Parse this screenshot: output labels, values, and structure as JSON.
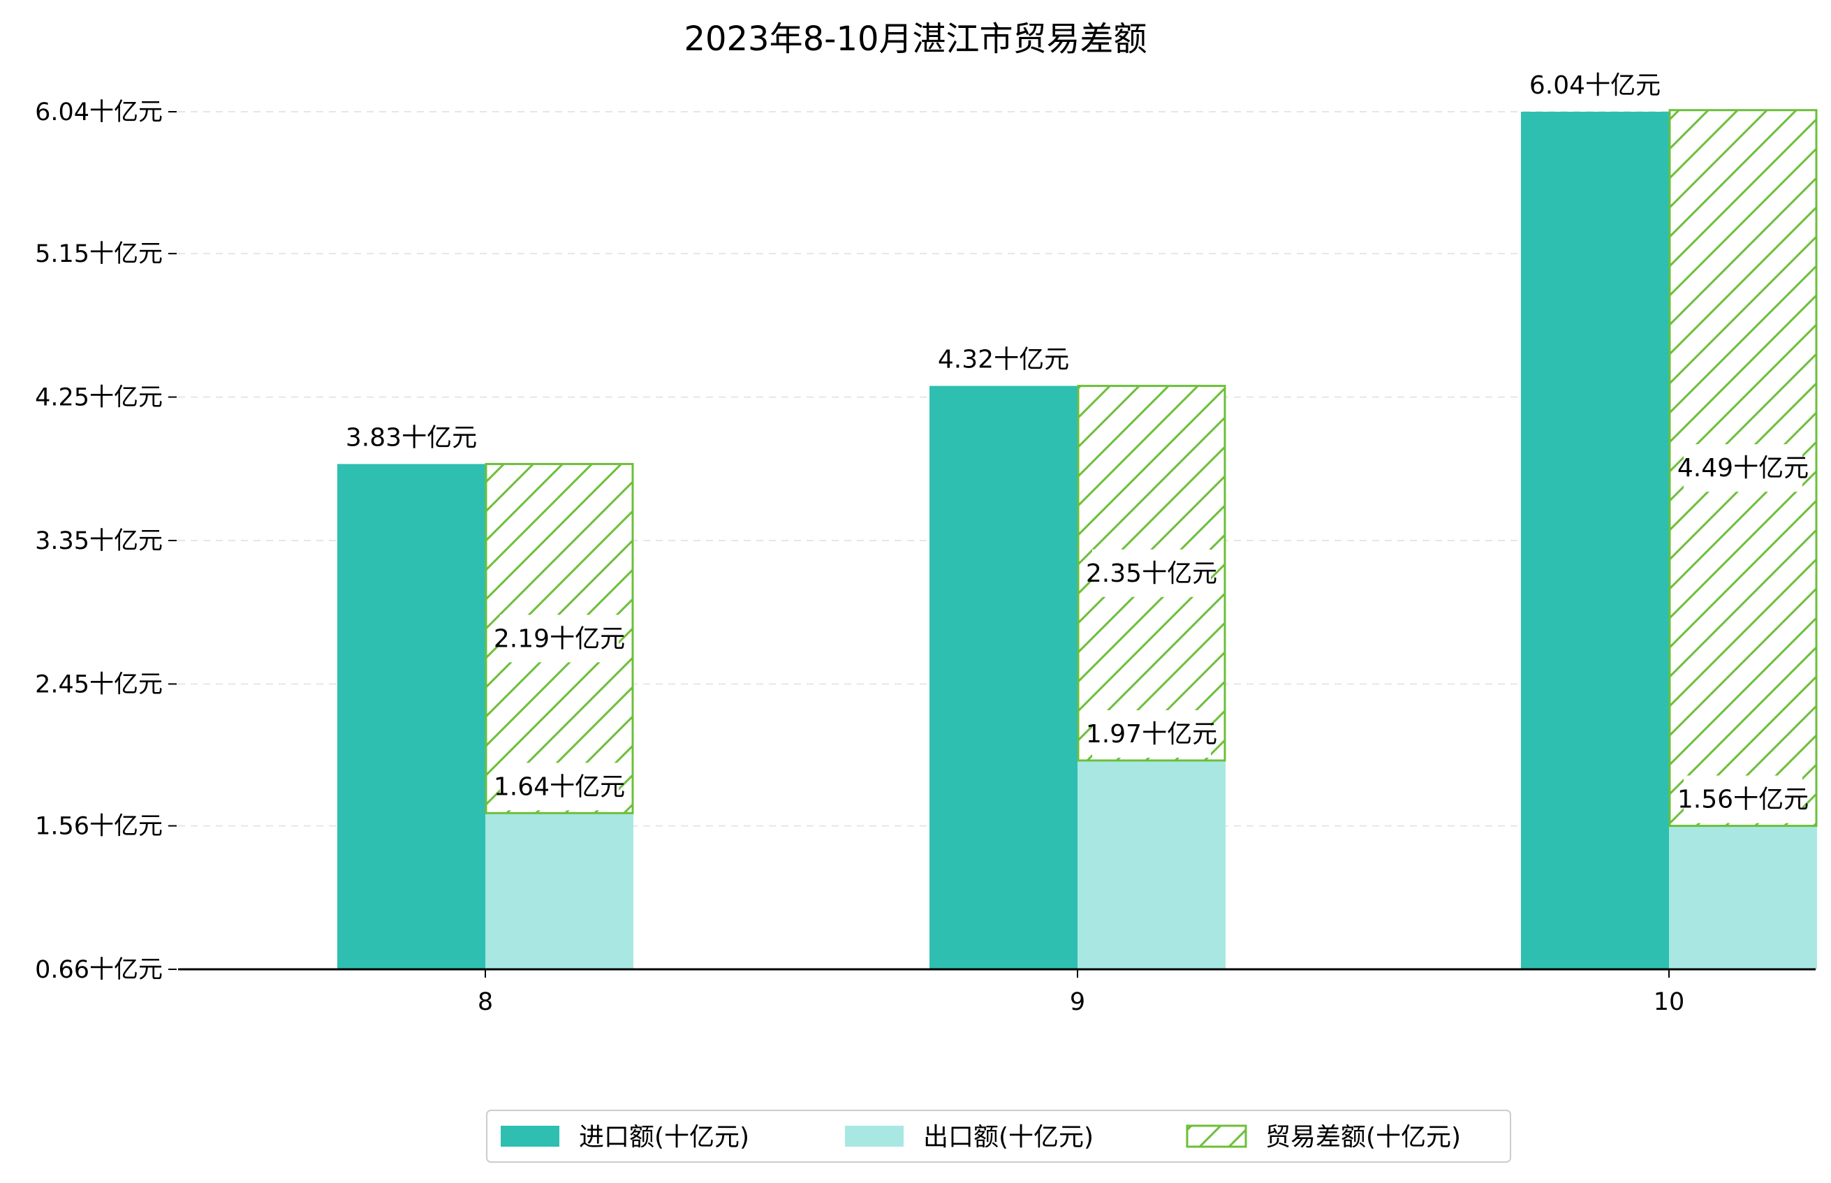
{
  "chart_data": {
    "type": "bar",
    "title": "2023年8-10月湛江市贸易差额",
    "categories": [
      "8",
      "9",
      "10"
    ],
    "series": [
      {
        "name": "进口额(十亿元)",
        "values": [
          3.83,
          4.32,
          6.04
        ],
        "color": "#2ebfb0",
        "pattern": "solid"
      },
      {
        "name": "出口额(十亿元)",
        "values": [
          1.64,
          1.97,
          1.56
        ],
        "color": "#a8e7e2",
        "pattern": "solid"
      },
      {
        "name": "贸易差额(十亿元)",
        "values": [
          2.19,
          2.35,
          4.49
        ],
        "color": "#6dbf3a",
        "pattern": "hatch-stacked-on-export"
      }
    ],
    "data_labels": [
      [
        "3.83十亿元",
        "4.32十亿元",
        "6.04十亿元"
      ],
      [
        "1.64十亿元",
        "1.97十亿元",
        "1.56十亿元"
      ],
      [
        "2.19十亿元",
        "2.35十亿元",
        "4.49十亿元"
      ]
    ],
    "yticks": [
      0.66,
      1.56,
      2.45,
      3.35,
      4.25,
      5.15,
      6.04
    ],
    "ytick_labels": [
      "0.66十亿元",
      "1.56十亿元",
      "2.45十亿元",
      "3.35十亿元",
      "4.25十亿元",
      "5.15十亿元",
      "6.04十亿元"
    ],
    "ylim": [
      0.66,
      6.04
    ],
    "xlabel": "",
    "ylabel": "",
    "grid": "horizontal-dashed",
    "legend_position": "bottom-center"
  }
}
